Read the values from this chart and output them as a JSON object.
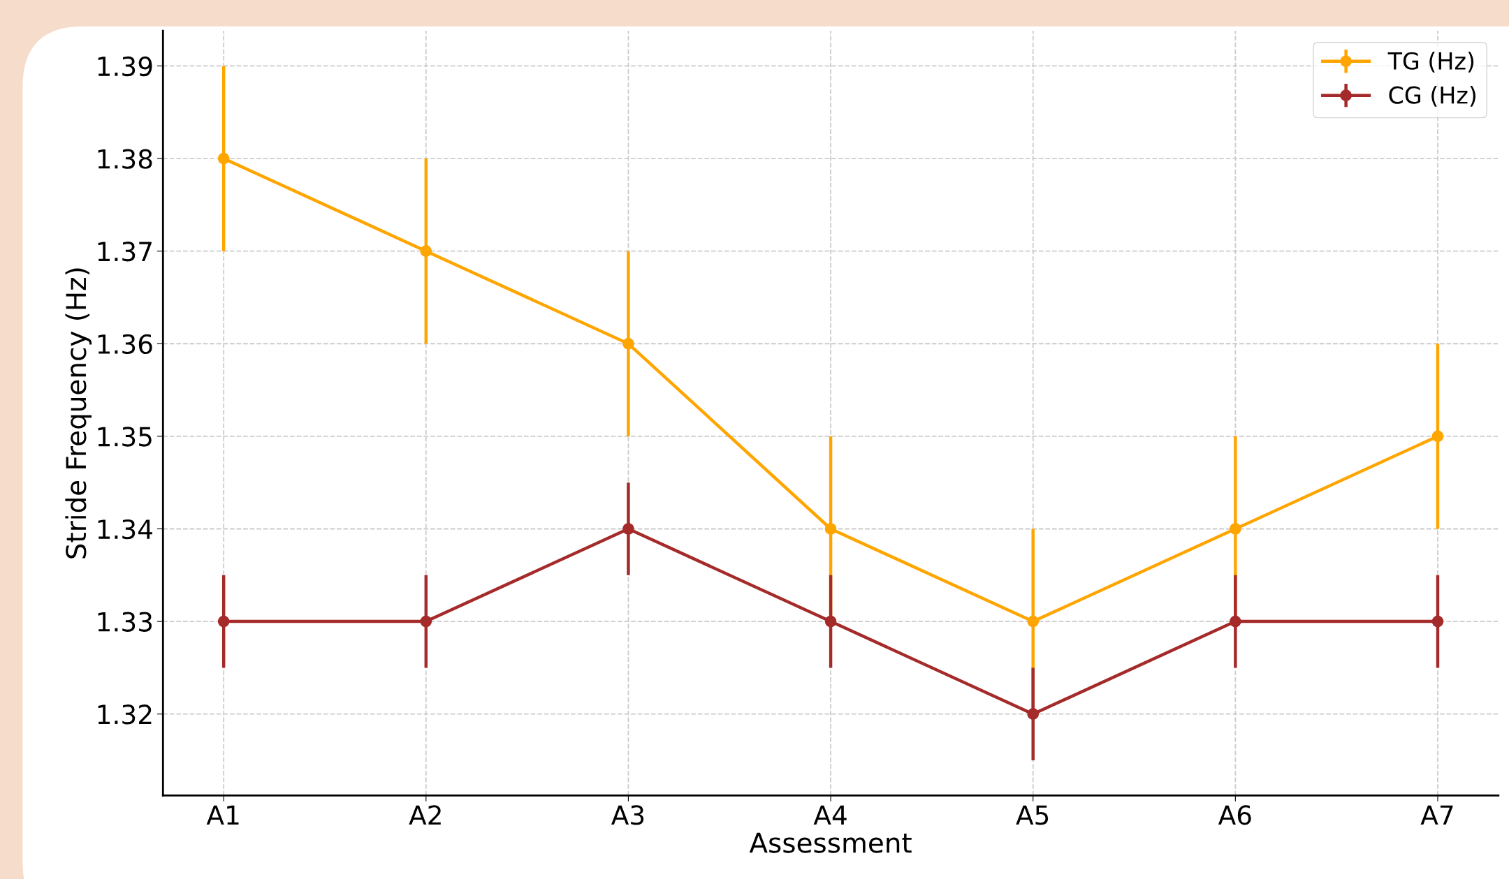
{
  "chart_data": {
    "type": "line",
    "xlabel": "Assessment",
    "ylabel": "Stride Frequency (Hz)",
    "categories": [
      "A1",
      "A2",
      "A3",
      "A4",
      "A5",
      "A6",
      "A7"
    ],
    "series": [
      {
        "name": "TG (Hz)",
        "color": "#ffa500",
        "values": [
          1.38,
          1.37,
          1.36,
          1.34,
          1.33,
          1.34,
          1.35
        ],
        "errors": [
          0.01,
          0.01,
          0.01,
          0.01,
          0.01,
          0.01,
          0.01
        ]
      },
      {
        "name": "CG (Hz)",
        "color": "#a52a2a",
        "values": [
          1.33,
          1.33,
          1.34,
          1.33,
          1.32,
          1.33,
          1.33
        ],
        "errors": [
          0.005,
          0.005,
          0.005,
          0.005,
          0.005,
          0.005,
          0.005
        ]
      }
    ],
    "ylim": [
      1.3112,
      1.3938
    ],
    "yticks": [
      1.32,
      1.33,
      1.34,
      1.35,
      1.36,
      1.37,
      1.38,
      1.39
    ],
    "grid": true,
    "legend": "top right",
    "marker": "circle",
    "line_style": "solid"
  }
}
